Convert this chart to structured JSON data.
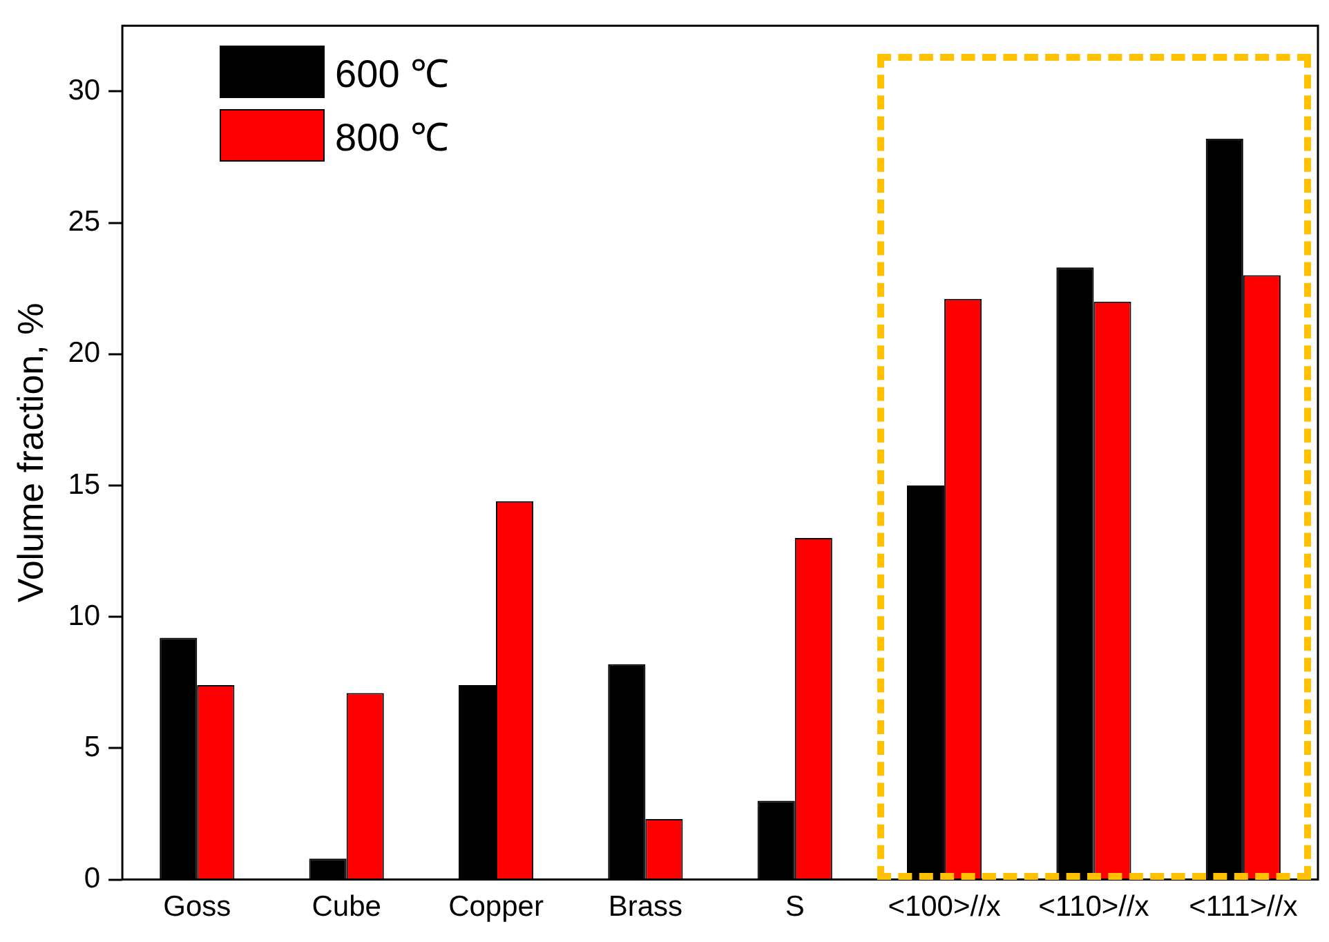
{
  "chart_data": {
    "type": "bar",
    "ylabel": "Volume fraction, %",
    "categories": [
      "Goss",
      "Cube",
      "Copper",
      "Brass",
      "S",
      "<100>//x",
      "<110>//x",
      "<111>//x"
    ],
    "series": [
      {
        "name": "600 ℃",
        "color": "#000000",
        "values": [
          9.2,
          0.8,
          7.4,
          8.2,
          3.0,
          15.0,
          23.3,
          28.2
        ]
      },
      {
        "name": "800 ℃",
        "color": "#ff0000",
        "values": [
          7.4,
          7.1,
          14.4,
          2.3,
          13.0,
          22.1,
          22.0,
          23.0
        ]
      }
    ],
    "ylim": [
      0,
      32.5
    ],
    "yticks": [
      0,
      5,
      10,
      15,
      20,
      25,
      30
    ],
    "grid": false,
    "legend": "top left"
  }
}
